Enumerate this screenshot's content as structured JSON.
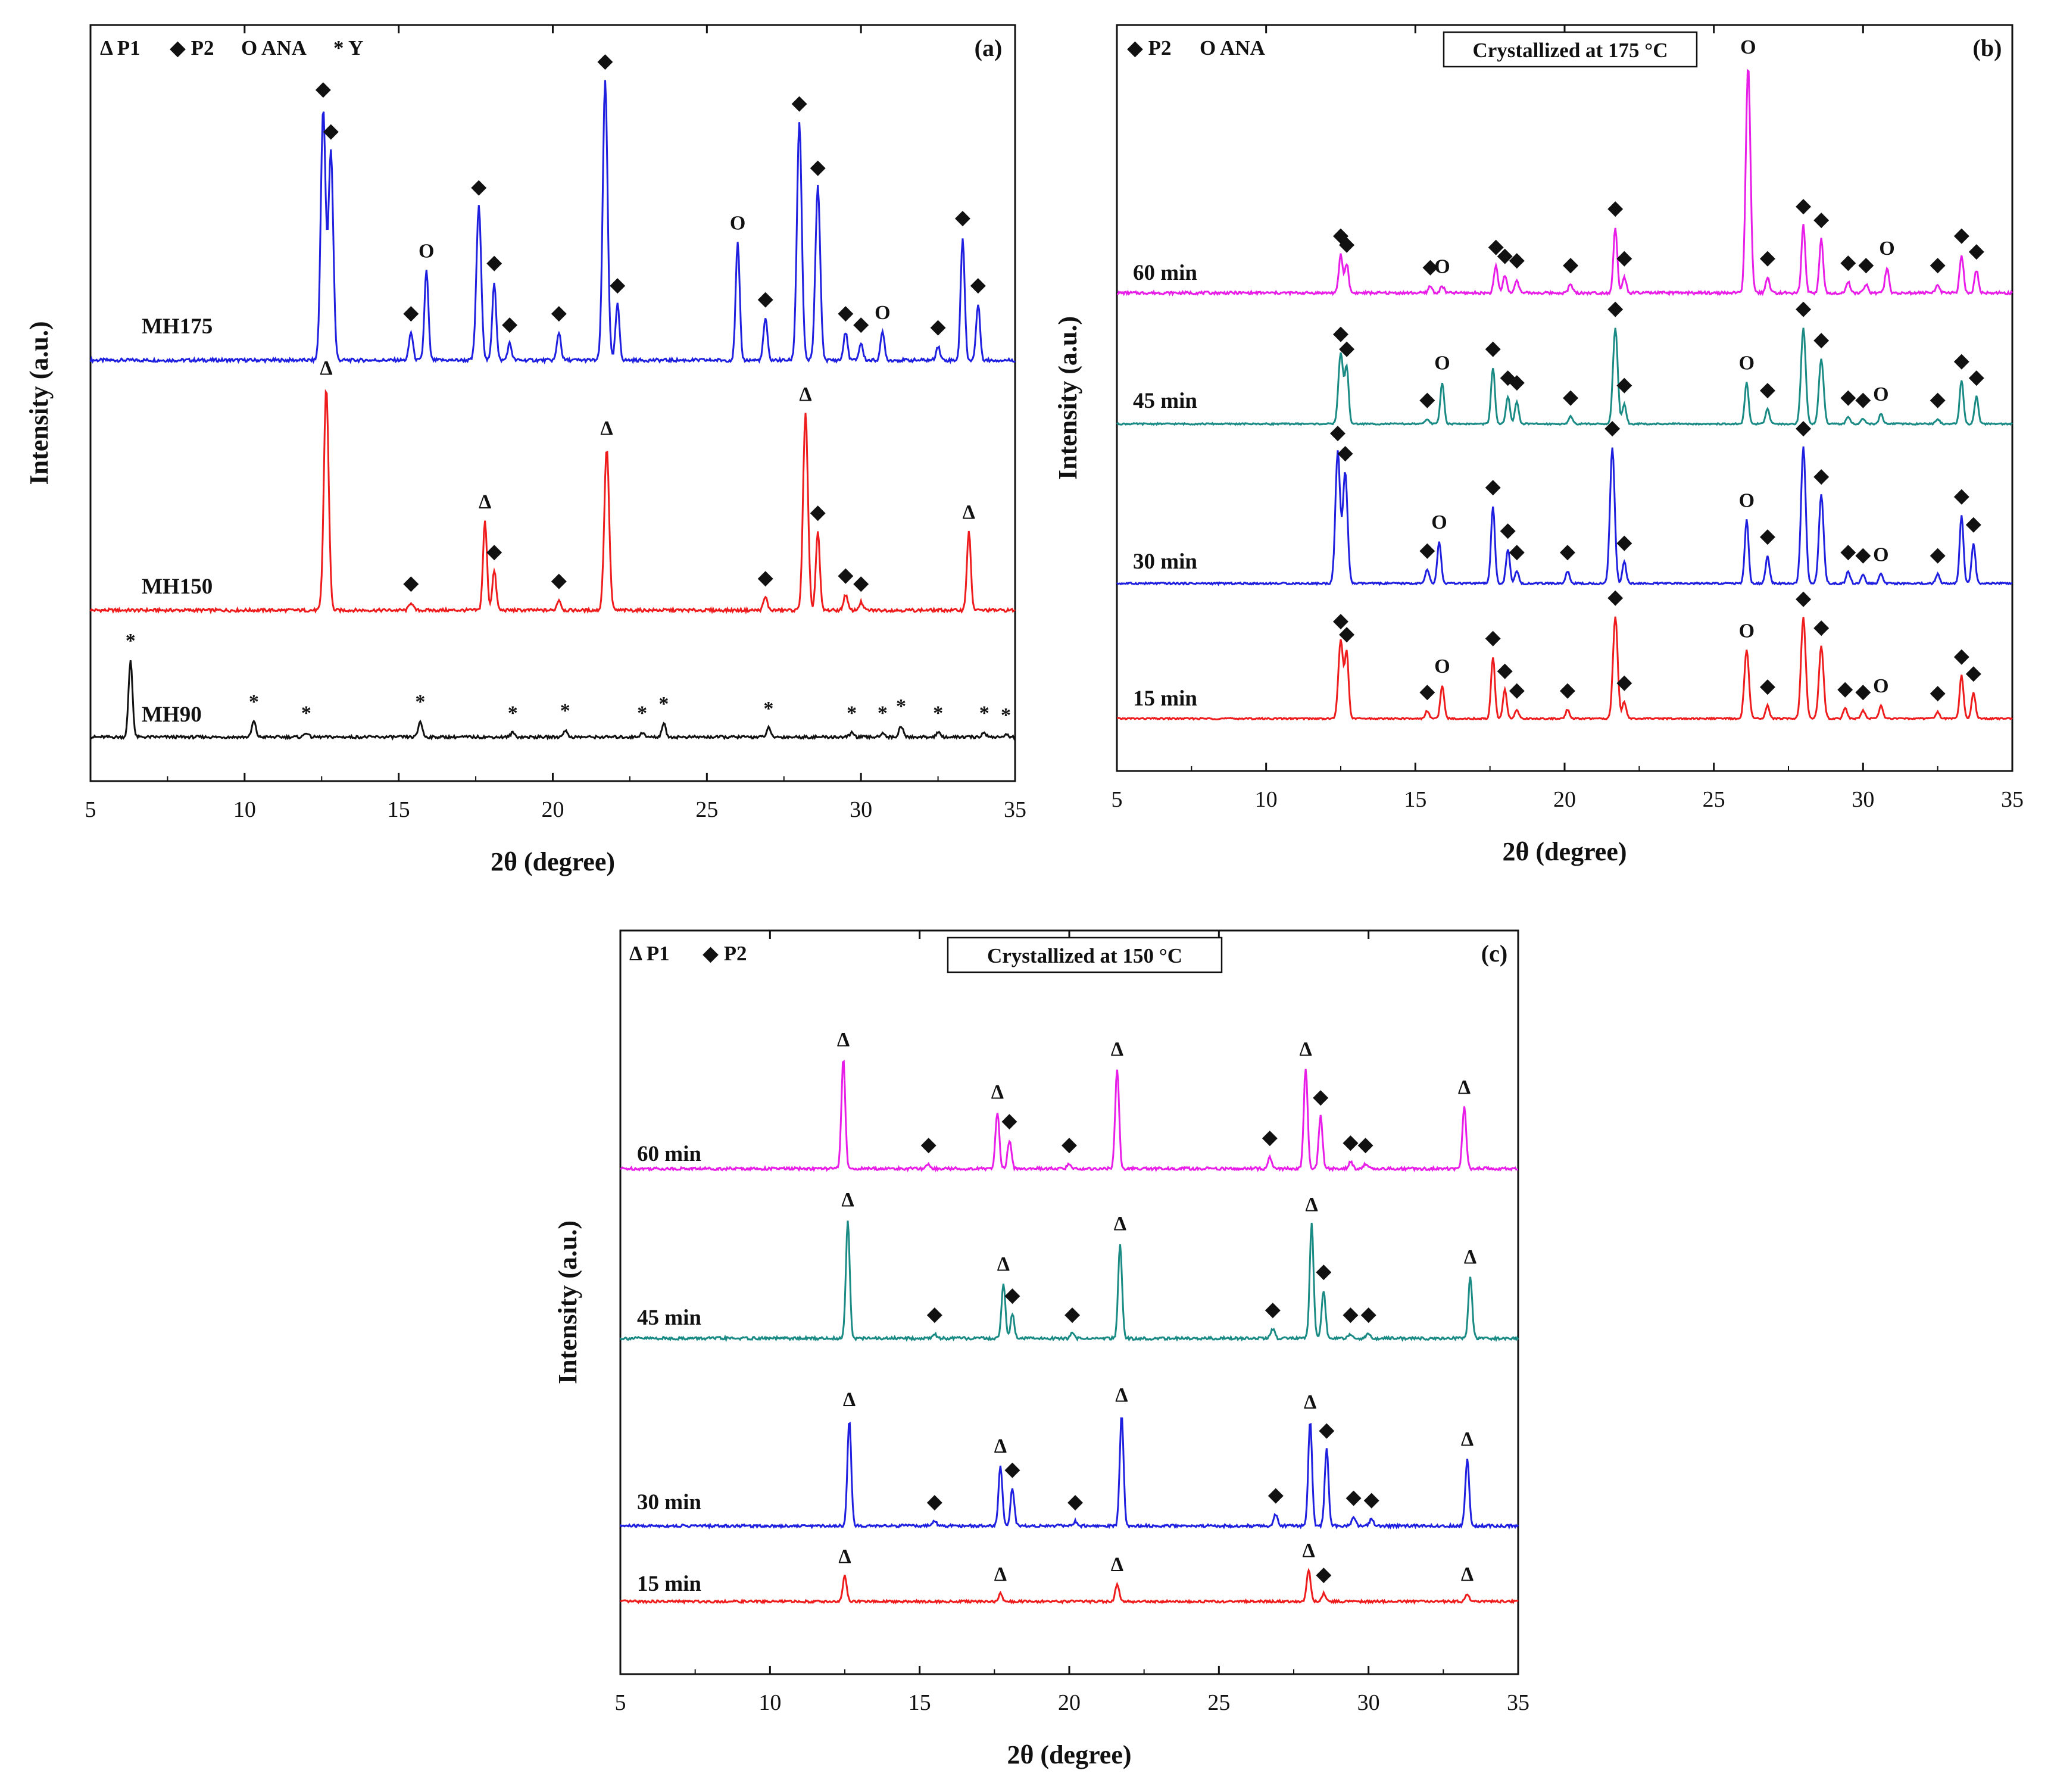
{
  "chart_data": [
    {
      "type": "line",
      "panel": "(a)",
      "xlabel": "2θ (degree)",
      "ylabel": "Intensity (a.u.)",
      "xlim": [
        5,
        35
      ],
      "xticks": [
        "5",
        "10",
        "15",
        "20",
        "25",
        "30",
        "35"
      ],
      "legend": [
        "Δ P1",
        "◆ P2",
        "O ANA",
        "* Y"
      ],
      "series": [
        {
          "name": "MH175",
          "color": "#1f1fe0",
          "marker_color": "#111",
          "peaks": [
            [
              12.55,
              0.9,
              "◆"
            ],
            [
              12.8,
              0.75,
              "◆"
            ],
            [
              15.4,
              0.1,
              "◆"
            ],
            [
              15.9,
              0.32,
              "O"
            ],
            [
              17.6,
              0.55,
              "◆"
            ],
            [
              18.1,
              0.28,
              "◆"
            ],
            [
              18.6,
              0.06,
              "◆"
            ],
            [
              20.2,
              0.1,
              "◆"
            ],
            [
              21.7,
              1.0,
              "◆"
            ],
            [
              22.1,
              0.2,
              "◆"
            ],
            [
              26.0,
              0.42,
              "O"
            ],
            [
              26.9,
              0.15,
              "◆"
            ],
            [
              28.0,
              0.85,
              "◆"
            ],
            [
              28.6,
              0.62,
              "◆"
            ],
            [
              29.5,
              0.1,
              "◆"
            ],
            [
              30.0,
              0.06,
              "◆"
            ],
            [
              30.7,
              0.1,
              "O"
            ],
            [
              32.5,
              0.05,
              "◆"
            ],
            [
              33.3,
              0.44,
              "◆"
            ],
            [
              33.8,
              0.2,
              "◆"
            ]
          ]
        },
        {
          "name": "MH150",
          "color": "#ee1c1c",
          "peaks": [
            [
              12.65,
              0.85,
              "Δ"
            ],
            [
              15.4,
              0.03,
              "◆"
            ],
            [
              17.8,
              0.34,
              "Δ"
            ],
            [
              18.1,
              0.15,
              "◆"
            ],
            [
              20.2,
              0.04,
              "◆"
            ],
            [
              21.75,
              0.62,
              "Δ"
            ],
            [
              26.9,
              0.05,
              "◆"
            ],
            [
              28.2,
              0.75,
              "Δ"
            ],
            [
              28.6,
              0.3,
              "◆"
            ],
            [
              29.5,
              0.06,
              "◆"
            ],
            [
              30.0,
              0.03,
              "◆"
            ],
            [
              33.5,
              0.3,
              "Δ"
            ]
          ]
        },
        {
          "name": "MH90",
          "color": "#111111",
          "peaks": [
            [
              6.3,
              0.34,
              "*"
            ],
            [
              10.3,
              0.07,
              "*"
            ],
            [
              12.0,
              0.02,
              "*"
            ],
            [
              15.7,
              0.07,
              "*"
            ],
            [
              18.7,
              0.02,
              "*"
            ],
            [
              20.4,
              0.03,
              "*"
            ],
            [
              22.9,
              0.02,
              "*"
            ],
            [
              23.6,
              0.06,
              "*"
            ],
            [
              27.0,
              0.04,
              "*"
            ],
            [
              29.7,
              0.02,
              "*"
            ],
            [
              30.7,
              0.02,
              "*"
            ],
            [
              31.3,
              0.05,
              "*"
            ],
            [
              32.5,
              0.02,
              "*"
            ],
            [
              34.0,
              0.02,
              "*"
            ],
            [
              34.7,
              0.01,
              "*"
            ]
          ]
        }
      ]
    },
    {
      "type": "line",
      "panel": "(b)",
      "title": "Crystallized at 175 °C",
      "xlabel": "2θ (degree)",
      "ylabel": "Intensity (a.u.)",
      "xlim": [
        5,
        35
      ],
      "xticks": [
        "5",
        "10",
        "15",
        "20",
        "25",
        "30",
        "35"
      ],
      "legend": [
        "◆ P2",
        "O ANA"
      ],
      "series": [
        {
          "name": "60 min",
          "color": "#e81ee8",
          "peaks": [
            [
              12.5,
              0.17,
              "◆"
            ],
            [
              12.7,
              0.13,
              "◆"
            ],
            [
              15.5,
              0.03,
              "◆"
            ],
            [
              15.9,
              0.03,
              "O"
            ],
            [
              17.7,
              0.12,
              "◆"
            ],
            [
              18.0,
              0.08,
              "◆"
            ],
            [
              18.4,
              0.06,
              "◆"
            ],
            [
              20.2,
              0.04,
              "◆"
            ],
            [
              21.7,
              0.29,
              "◆"
            ],
            [
              22.0,
              0.07,
              "◆"
            ],
            [
              26.15,
              1.0,
              "O"
            ],
            [
              26.8,
              0.07,
              "◆"
            ],
            [
              28.0,
              0.3,
              "◆"
            ],
            [
              28.6,
              0.24,
              "◆"
            ],
            [
              29.5,
              0.05,
              "◆"
            ],
            [
              30.1,
              0.04,
              "◆"
            ],
            [
              30.8,
              0.11,
              "O"
            ],
            [
              32.5,
              0.04,
              "◆"
            ],
            [
              33.3,
              0.17,
              "◆"
            ],
            [
              33.8,
              0.1,
              "◆"
            ]
          ]
        },
        {
          "name": "45 min",
          "color": "#1a8a84",
          "peaks": [
            [
              12.5,
              0.57,
              "◆"
            ],
            [
              12.7,
              0.45,
              "◆"
            ],
            [
              15.4,
              0.04,
              "◆"
            ],
            [
              15.9,
              0.33,
              "O"
            ],
            [
              17.6,
              0.45,
              "◆"
            ],
            [
              18.1,
              0.22,
              "◆"
            ],
            [
              18.4,
              0.18,
              "◆"
            ],
            [
              20.2,
              0.06,
              "◆"
            ],
            [
              21.7,
              0.77,
              "◆"
            ],
            [
              22.0,
              0.16,
              "◆"
            ],
            [
              26.1,
              0.33,
              "O"
            ],
            [
              26.8,
              0.12,
              "◆"
            ],
            [
              28.0,
              0.77,
              "◆"
            ],
            [
              28.6,
              0.52,
              "◆"
            ],
            [
              29.5,
              0.06,
              "◆"
            ],
            [
              30.0,
              0.04,
              "◆"
            ],
            [
              30.6,
              0.08,
              "O"
            ],
            [
              32.5,
              0.04,
              "◆"
            ],
            [
              33.3,
              0.35,
              "◆"
            ],
            [
              33.8,
              0.22,
              "◆"
            ]
          ]
        },
        {
          "name": "30 min",
          "color": "#1f1fe0",
          "peaks": [
            [
              12.4,
              0.85,
              "◆"
            ],
            [
              12.65,
              0.72,
              "◆"
            ],
            [
              15.4,
              0.09,
              "◆"
            ],
            [
              15.8,
              0.27,
              "O"
            ],
            [
              17.6,
              0.5,
              "◆"
            ],
            [
              18.1,
              0.22,
              "◆"
            ],
            [
              18.4,
              0.08,
              "◆"
            ],
            [
              20.1,
              0.08,
              "◆"
            ],
            [
              21.6,
              0.88,
              "◆"
            ],
            [
              22.0,
              0.14,
              "◆"
            ],
            [
              26.1,
              0.41,
              "O"
            ],
            [
              26.8,
              0.18,
              "◆"
            ],
            [
              28.0,
              0.88,
              "◆"
            ],
            [
              28.6,
              0.57,
              "◆"
            ],
            [
              29.5,
              0.08,
              "◆"
            ],
            [
              30.0,
              0.06,
              "◆"
            ],
            [
              30.6,
              0.06,
              "O"
            ],
            [
              32.5,
              0.06,
              "◆"
            ],
            [
              33.3,
              0.44,
              "◆"
            ],
            [
              33.7,
              0.26,
              "◆"
            ]
          ]
        },
        {
          "name": "15 min",
          "color": "#ee1c1c",
          "peaks": [
            [
              12.5,
              0.6,
              "◆"
            ],
            [
              12.7,
              0.5,
              "◆"
            ],
            [
              15.4,
              0.06,
              "◆"
            ],
            [
              15.9,
              0.25,
              "O"
            ],
            [
              17.6,
              0.47,
              "◆"
            ],
            [
              18.0,
              0.22,
              "◆"
            ],
            [
              18.4,
              0.07,
              "◆"
            ],
            [
              20.1,
              0.07,
              "◆"
            ],
            [
              21.7,
              0.78,
              "◆"
            ],
            [
              22.0,
              0.13,
              "◆"
            ],
            [
              26.1,
              0.52,
              "O"
            ],
            [
              26.8,
              0.1,
              "◆"
            ],
            [
              28.0,
              0.77,
              "◆"
            ],
            [
              28.6,
              0.55,
              "◆"
            ],
            [
              29.4,
              0.08,
              "◆"
            ],
            [
              30.0,
              0.06,
              "◆"
            ],
            [
              30.6,
              0.1,
              "O"
            ],
            [
              32.5,
              0.05,
              "◆"
            ],
            [
              33.3,
              0.33,
              "◆"
            ],
            [
              33.7,
              0.2,
              "◆"
            ]
          ]
        }
      ]
    },
    {
      "type": "line",
      "panel": "(c)",
      "title": "Crystallized at 150 °C",
      "xlabel": "2θ (degree)",
      "ylabel": "Intensity (a.u.)",
      "xlim": [
        5,
        35
      ],
      "xticks": [
        "5",
        "10",
        "15",
        "20",
        "25",
        "30",
        "35"
      ],
      "legend": [
        "Δ P1",
        "◆ P2"
      ],
      "series": [
        {
          "name": "60 min",
          "color": "#e81ee8",
          "peaks": [
            [
              12.45,
              0.46,
              "Δ"
            ],
            [
              15.3,
              0.02,
              "◆"
            ],
            [
              17.6,
              0.24,
              "Δ"
            ],
            [
              18.0,
              0.12,
              "◆"
            ],
            [
              20.0,
              0.02,
              "◆"
            ],
            [
              21.6,
              0.42,
              "Δ"
            ],
            [
              26.7,
              0.05,
              "◆"
            ],
            [
              27.9,
              0.42,
              "Δ"
            ],
            [
              28.4,
              0.22,
              "◆"
            ],
            [
              29.4,
              0.03,
              "◆"
            ],
            [
              29.9,
              0.02,
              "◆"
            ],
            [
              33.2,
              0.26,
              "Δ"
            ]
          ]
        },
        {
          "name": "45 min",
          "color": "#1a8a84",
          "peaks": [
            [
              12.6,
              0.5,
              "Δ"
            ],
            [
              15.5,
              0.02,
              "◆"
            ],
            [
              17.8,
              0.23,
              "Δ"
            ],
            [
              18.1,
              0.1,
              "◆"
            ],
            [
              20.1,
              0.02,
              "◆"
            ],
            [
              21.7,
              0.4,
              "Δ"
            ],
            [
              26.8,
              0.04,
              "◆"
            ],
            [
              28.1,
              0.48,
              "Δ"
            ],
            [
              28.5,
              0.2,
              "◆"
            ],
            [
              29.4,
              0.02,
              "◆"
            ],
            [
              30.0,
              0.02,
              "◆"
            ],
            [
              33.4,
              0.26,
              "Δ"
            ]
          ]
        },
        {
          "name": "30 min",
          "color": "#1f1fe0",
          "peaks": [
            [
              12.65,
              0.46,
              "Δ"
            ],
            [
              15.5,
              0.02,
              "◆"
            ],
            [
              17.7,
              0.26,
              "Δ"
            ],
            [
              18.1,
              0.16,
              "◆"
            ],
            [
              20.2,
              0.02,
              "◆"
            ],
            [
              21.75,
              0.48,
              "Δ"
            ],
            [
              26.9,
              0.05,
              "◆"
            ],
            [
              28.05,
              0.45,
              "Δ"
            ],
            [
              28.6,
              0.33,
              "◆"
            ],
            [
              29.5,
              0.04,
              "◆"
            ],
            [
              30.1,
              0.03,
              "◆"
            ],
            [
              33.3,
              0.29,
              "Δ"
            ]
          ]
        },
        {
          "name": "15 min",
          "color": "#ee1c1c",
          "peaks": [
            [
              12.5,
              0.13,
              "Δ"
            ],
            [
              17.7,
              0.04,
              "Δ"
            ],
            [
              21.6,
              0.09,
              "Δ"
            ],
            [
              28.0,
              0.16,
              "Δ"
            ],
            [
              28.5,
              0.04,
              "◆"
            ],
            [
              33.3,
              0.04,
              "Δ"
            ]
          ]
        }
      ]
    }
  ]
}
